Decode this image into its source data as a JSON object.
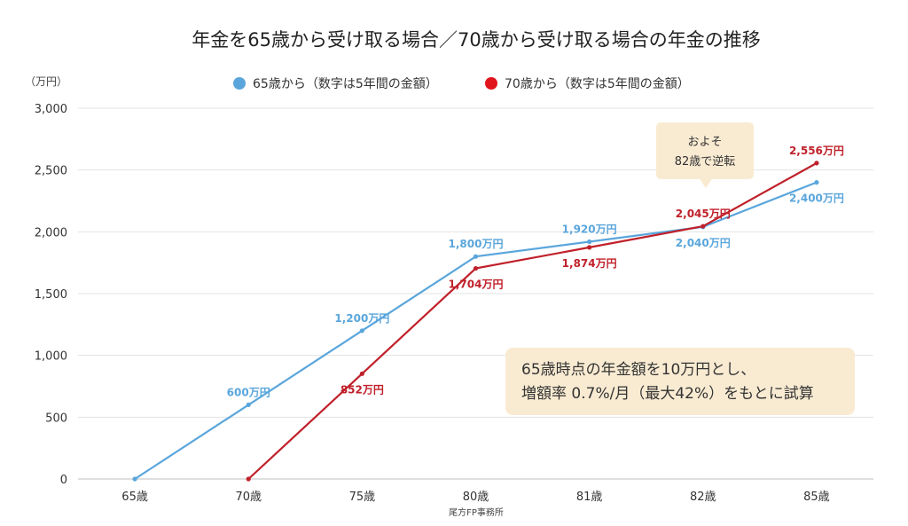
{
  "chart_data": {
    "type": "line",
    "title": "年金を65歳から受け取る場合／70歳から受け取る場合の年金の推移",
    "unit_label": "（万円）",
    "categories": [
      "65歳",
      "70歳",
      "75歳",
      "80歳",
      "81歳",
      "82歳",
      "85歳"
    ],
    "ylim": [
      0,
      3000
    ],
    "yticks": [
      0,
      500,
      1000,
      1500,
      2000,
      2500,
      3000
    ],
    "ytick_labels": [
      "0",
      "500",
      "1,000",
      "1,500",
      "2,000",
      "2,500",
      "3,000"
    ],
    "grid": true,
    "legend_position": "top",
    "series": [
      {
        "name": "65歳から（数字は5年間の金額）",
        "color": "#5aa6dc",
        "values": [
          0,
          600,
          1200,
          1800,
          1920,
          2040,
          2400
        ],
        "labels": [
          "",
          "600万円",
          "1,200万円",
          "1,800万円",
          "1,920万円",
          "2,040万円",
          "2,400万円"
        ],
        "label_positions": [
          "",
          "above",
          "above",
          "above",
          "above",
          "below",
          "below"
        ]
      },
      {
        "name": "70歳から（数字は5年間の金額）",
        "color": "#c0202a",
        "values": [
          null,
          0,
          852,
          1704,
          1874,
          2045,
          2556
        ],
        "labels": [
          "",
          "",
          "852万円",
          "1,704万円",
          "1,874万円",
          "2,045万円",
          "2,556万円"
        ],
        "label_positions": [
          "",
          "",
          "below",
          "below",
          "below",
          "above",
          "above"
        ]
      }
    ],
    "callout": {
      "lines": [
        "およそ",
        "82歳で逆転"
      ],
      "category": "82歳"
    },
    "note": {
      "lines": [
        "65歳時点の年金額を10万円とし、",
        "増額率 0.7%/月（最大42%）をもとに試算"
      ]
    },
    "source": "尾方FP事務所",
    "colors": {
      "note_bg": "#f9ebd2",
      "grid": "#e3e3e3",
      "axis": "#bfbfbf"
    }
  }
}
